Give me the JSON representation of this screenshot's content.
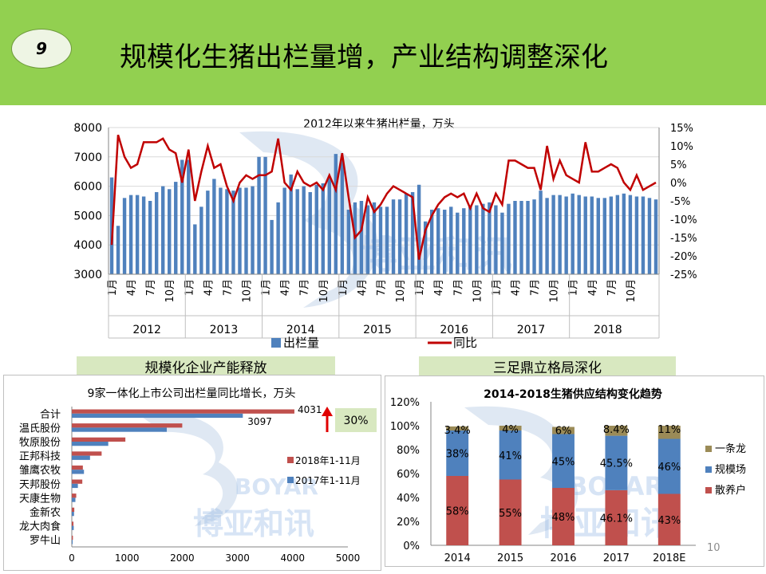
{
  "header": {
    "badge": "9",
    "title": "规模化生猪出栏量增，产业结构调整深化"
  },
  "sections": {
    "left": "规模化企业产能释放",
    "right": "三足鼎立格局深化"
  },
  "page_number": "10",
  "watermark": {
    "en": "BOYAR",
    "cn": "博亚和讯"
  },
  "colors": {
    "blue": "#4f81bd",
    "red": "#c0504d",
    "olive": "#9b8b57",
    "line": "#c00000",
    "green_bg": "#92d050"
  },
  "chart_data": [
    {
      "type": "bar+line",
      "title": "2012年以来生猪出栏量，万头",
      "years": [
        "2012",
        "2013",
        "2014",
        "2015",
        "2016",
        "2017",
        "2018"
      ],
      "month_ticks": [
        "1月",
        "4月",
        "7月",
        "10月"
      ],
      "y_left": {
        "ticks": [
          "8000",
          "7000",
          "6000",
          "5000",
          "4000",
          "3000"
        ],
        "min": 3000,
        "max": 8000
      },
      "y_right": {
        "ticks": [
          "15%",
          "10%",
          "5%",
          "0%",
          "-5%",
          "-10%",
          "-15%",
          "-20%",
          "-25%"
        ],
        "min": -25,
        "max": 15
      },
      "series": [
        {
          "name": "出栏量",
          "type": "bar",
          "values": [
            6300,
            4650,
            5600,
            5700,
            5700,
            5650,
            5500,
            5800,
            6000,
            5900,
            6150,
            6900,
            6900,
            4700,
            5300,
            5850,
            6250,
            5950,
            5900,
            5850,
            5950,
            5950,
            6000,
            7000,
            7000,
            4850,
            5450,
            5950,
            6400,
            5900,
            6000,
            5800,
            6050,
            6100,
            6300,
            7100,
            6900,
            5200,
            5450,
            5500,
            5350,
            5450,
            5300,
            5300,
            5550,
            5550,
            5750,
            5800,
            6050,
            4800,
            5200,
            5250,
            5200,
            5300,
            5100,
            5250,
            5350,
            5350,
            5400,
            5450,
            5350,
            5100,
            5400,
            5500,
            5500,
            5500,
            5550,
            5850,
            5600,
            5700,
            5700,
            5650,
            5750,
            5700,
            5650,
            5650,
            5600,
            5600,
            5650,
            5700,
            5750,
            5700,
            5650,
            5650,
            5600,
            5550
          ]
        },
        {
          "name": "同比",
          "type": "line",
          "values": [
            -17,
            13,
            7,
            4,
            5,
            11,
            11,
            11,
            12,
            9,
            8,
            0,
            9,
            -5,
            3,
            10,
            4,
            5,
            -1,
            -5,
            0,
            2,
            1,
            2,
            2,
            3,
            12,
            0,
            -2,
            3,
            0,
            -1,
            0,
            -2,
            2,
            -2,
            8,
            -4,
            -15,
            -13,
            -4,
            -8,
            -6,
            -3,
            -1,
            -2,
            -3,
            -4,
            -21,
            -13,
            -9,
            -6,
            -4,
            -3,
            -4,
            -3,
            -7,
            -3,
            -7,
            -8,
            -3,
            -6,
            6,
            6,
            5,
            4,
            4,
            -2,
            10,
            1,
            6,
            2,
            1,
            0,
            11,
            3,
            3,
            4,
            5,
            4,
            0,
            -2,
            2,
            -2,
            -1,
            0
          ]
        }
      ],
      "legend": [
        "出栏量",
        "同比"
      ]
    },
    {
      "type": "bar",
      "orientation": "horizontal",
      "title": "9家一体化上市公司出栏量同比增长，万头",
      "categories": [
        "合计",
        "温氏股份",
        "牧原股份",
        "正邦科技",
        "雏鹰农牧",
        "天邦股份",
        "天康生物",
        "金新农",
        "龙大肉食",
        "罗牛山"
      ],
      "series": [
        {
          "name": "2018年1-11月",
          "values": [
            4031,
            2000,
            970,
            540,
            200,
            190,
            80,
            45,
            30,
            20
          ]
        },
        {
          "name": "2017年1-11月",
          "values": [
            3097,
            1720,
            660,
            330,
            220,
            110,
            65,
            40,
            35,
            15
          ]
        }
      ],
      "data_labels": [
        "4031",
        "3097"
      ],
      "x_ticks": [
        "0",
        "1000",
        "2000",
        "3000",
        "4000",
        "5000"
      ],
      "xlim": [
        0,
        5000
      ],
      "annotation": "30%"
    },
    {
      "type": "stacked_bar",
      "title": "2014-2018生猪供应结构变化趋势",
      "categories": [
        "2014",
        "2015",
        "2016",
        "2017",
        "2018E"
      ],
      "series": [
        {
          "name": "散养户",
          "values": [
            58,
            55,
            48,
            46.1,
            43
          ],
          "labels": [
            "58%",
            "55%",
            "48%",
            "46.1%",
            "43%"
          ]
        },
        {
          "name": "规模场",
          "values": [
            38,
            41,
            45,
            45.5,
            46
          ],
          "labels": [
            "38%",
            "41%",
            "45%",
            "45.5%",
            "46%"
          ]
        },
        {
          "name": "一条龙",
          "values": [
            3.4,
            4,
            6,
            8.4,
            11
          ],
          "labels": [
            "3.4%",
            "4%",
            "6%",
            "8.4%",
            "11%"
          ]
        }
      ],
      "y_ticks": [
        "120%",
        "100%",
        "80%",
        "60%",
        "40%",
        "20%",
        "0%"
      ],
      "ylim": [
        0,
        120
      ],
      "legend": [
        "一条龙",
        "规模场",
        "散养户"
      ]
    }
  ]
}
